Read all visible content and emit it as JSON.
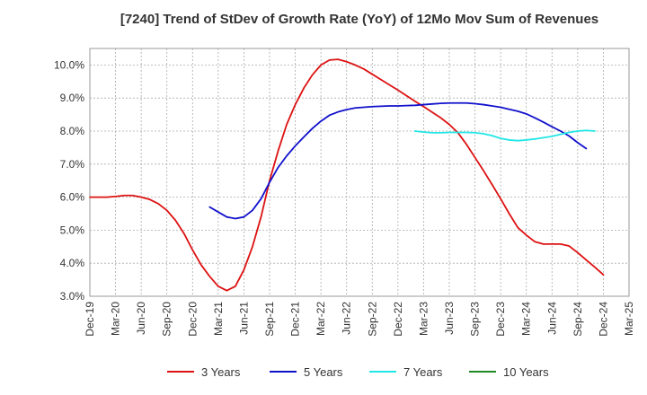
{
  "chart_data": {
    "type": "line",
    "title": "[7240]  Trend of StDev of Growth Rate (YoY) of 12Mo Mov Sum of Revenues",
    "xlabel": "",
    "ylabel": "",
    "ylim": [
      3.0,
      10.5
    ],
    "yticks": [
      3.0,
      4.0,
      5.0,
      6.0,
      7.0,
      8.0,
      9.0,
      10.0
    ],
    "ytick_labels": [
      "3.0%",
      "4.0%",
      "5.0%",
      "6.0%",
      "7.0%",
      "8.0%",
      "9.0%",
      "10.0%"
    ],
    "xticks": [
      "Dec-19",
      "Mar-20",
      "Jun-20",
      "Sep-20",
      "Dec-20",
      "Mar-21",
      "Jun-21",
      "Sep-21",
      "Dec-21",
      "Mar-22",
      "Jun-22",
      "Sep-22",
      "Dec-22",
      "Mar-23",
      "Jun-23",
      "Sep-23",
      "Dec-23",
      "Mar-24",
      "Jun-24",
      "Sep-24",
      "Dec-24",
      "Mar-25"
    ],
    "grid": true,
    "legend_position": "bottom",
    "series": [
      {
        "name": "3 Years",
        "color": "#dd1111",
        "start_index": 0,
        "values": [
          6.0,
          6.0,
          6.0,
          6.02,
          6.05,
          6.05,
          6.0,
          5.93,
          5.8,
          5.6,
          5.3,
          4.9,
          4.4,
          3.95,
          3.6,
          3.3,
          3.17,
          3.3,
          3.8,
          4.5,
          5.4,
          6.5,
          7.4,
          8.2,
          8.8,
          9.3,
          9.7,
          10.0,
          10.15,
          10.17,
          10.1,
          10.0,
          9.88,
          9.72,
          9.56,
          9.4,
          9.24,
          9.07,
          8.9,
          8.74,
          8.57,
          8.4,
          8.2,
          7.95,
          7.6,
          7.2,
          6.8,
          6.38,
          5.95,
          5.5,
          5.08,
          4.85,
          4.65,
          4.58,
          4.58,
          4.58,
          4.52,
          4.32,
          4.1,
          3.88,
          3.65
        ]
      },
      {
        "name": "5 Years",
        "color": "#1111cc",
        "start_index": 14,
        "values": [
          5.7,
          5.55,
          5.4,
          5.35,
          5.4,
          5.6,
          5.95,
          6.45,
          6.9,
          7.25,
          7.55,
          7.82,
          8.08,
          8.3,
          8.48,
          8.58,
          8.65,
          8.7,
          8.72,
          8.74,
          8.75,
          8.76,
          8.76,
          8.77,
          8.78,
          8.8,
          8.82,
          8.84,
          8.85,
          8.85,
          8.85,
          8.83,
          8.8,
          8.76,
          8.72,
          8.66,
          8.6,
          8.52,
          8.4,
          8.27,
          8.13,
          8.0,
          7.85,
          7.65,
          7.47
        ]
      },
      {
        "name": "7 Years",
        "color": "#22e6e6",
        "start_index": 38,
        "values": [
          8.0,
          7.97,
          7.95,
          7.95,
          7.96,
          7.96,
          7.96,
          7.95,
          7.92,
          7.86,
          7.78,
          7.73,
          7.71,
          7.73,
          7.76,
          7.8,
          7.84,
          7.9,
          7.96,
          8.0,
          8.02,
          8.0
        ]
      },
      {
        "name": "10 Years",
        "color": "#228822",
        "start_index": 0,
        "values": []
      }
    ]
  }
}
